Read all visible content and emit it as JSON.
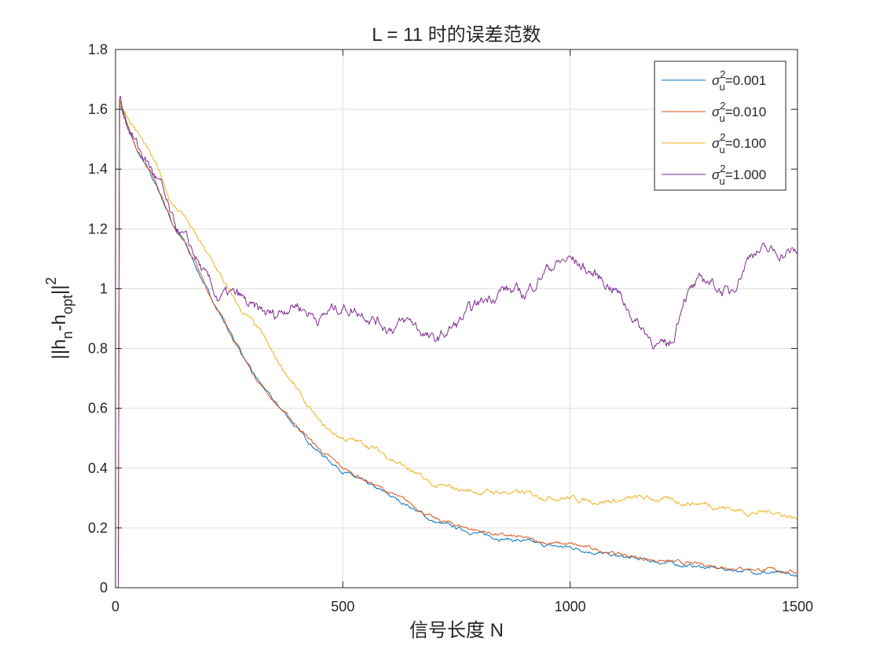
{
  "chart_data": {
    "type": "line",
    "title": "L = 11 时的误差范数",
    "xlabel": "信号长度 N",
    "ylabel": {
      "base": "||h",
      "sub1": "n",
      "mid": "-h",
      "sub2": "opt",
      "tail": "||",
      "sup": "2"
    },
    "xlim": [
      0,
      1500
    ],
    "ylim": [
      0,
      1.8
    ],
    "x_ticks": [
      0,
      500,
      1000,
      1500
    ],
    "x_tick_labels": [
      "0",
      "500",
      "1000",
      "1500"
    ],
    "y_ticks": [
      0,
      0.2,
      0.4,
      0.6,
      0.8,
      1.0,
      1.2,
      1.4,
      1.6,
      1.8
    ],
    "y_tick_labels": [
      "0",
      "0.2",
      "0.4",
      "0.6",
      "0.8",
      "1",
      "1.2",
      "1.4",
      "1.6",
      "1.8"
    ],
    "grid": true,
    "legend_position": "top-right",
    "series": [
      {
        "name": "σu²=0.001",
        "legend": {
          "sym": "σ",
          "sup": "2",
          "sub": "u",
          "rest": "=0.001"
        },
        "color": "#0072BD",
        "noise": 0.004,
        "points": [
          [
            0,
            0
          ],
          [
            6,
            0
          ],
          [
            9,
            1.62
          ],
          [
            25,
            1.55
          ],
          [
            50,
            1.45
          ],
          [
            75,
            1.39
          ],
          [
            100,
            1.31
          ],
          [
            125,
            1.22
          ],
          [
            150,
            1.16
          ],
          [
            175,
            1.08
          ],
          [
            200,
            1.0
          ],
          [
            225,
            0.93
          ],
          [
            250,
            0.86
          ],
          [
            275,
            0.79
          ],
          [
            300,
            0.72
          ],
          [
            325,
            0.67
          ],
          [
            350,
            0.62
          ],
          [
            375,
            0.58
          ],
          [
            400,
            0.53
          ],
          [
            425,
            0.49
          ],
          [
            450,
            0.45
          ],
          [
            475,
            0.42
          ],
          [
            500,
            0.39
          ],
          [
            550,
            0.35
          ],
          [
            600,
            0.31
          ],
          [
            650,
            0.27
          ],
          [
            700,
            0.22
          ],
          [
            750,
            0.2
          ],
          [
            800,
            0.18
          ],
          [
            850,
            0.165
          ],
          [
            900,
            0.155
          ],
          [
            950,
            0.14
          ],
          [
            1000,
            0.135
          ],
          [
            1050,
            0.12
          ],
          [
            1100,
            0.105
          ],
          [
            1150,
            0.095
          ],
          [
            1200,
            0.085
          ],
          [
            1250,
            0.075
          ],
          [
            1300,
            0.068
          ],
          [
            1350,
            0.06
          ],
          [
            1400,
            0.055
          ],
          [
            1450,
            0.048
          ],
          [
            1500,
            0.04
          ]
        ]
      },
      {
        "name": "σu²=0.010",
        "legend": {
          "sym": "σ",
          "sup": "2",
          "sub": "u",
          "rest": "=0.010"
        },
        "color": "#D95319",
        "noise": 0.004,
        "points": [
          [
            0,
            0
          ],
          [
            6,
            0
          ],
          [
            9,
            1.63
          ],
          [
            25,
            1.55
          ],
          [
            50,
            1.46
          ],
          [
            75,
            1.4
          ],
          [
            100,
            1.32
          ],
          [
            125,
            1.22
          ],
          [
            150,
            1.16
          ],
          [
            175,
            1.09
          ],
          [
            200,
            1.0
          ],
          [
            225,
            0.93
          ],
          [
            250,
            0.86
          ],
          [
            275,
            0.79
          ],
          [
            300,
            0.72
          ],
          [
            325,
            0.67
          ],
          [
            350,
            0.62
          ],
          [
            375,
            0.58
          ],
          [
            400,
            0.54
          ],
          [
            425,
            0.5
          ],
          [
            450,
            0.46
          ],
          [
            475,
            0.43
          ],
          [
            500,
            0.4
          ],
          [
            550,
            0.36
          ],
          [
            600,
            0.32
          ],
          [
            650,
            0.28
          ],
          [
            700,
            0.23
          ],
          [
            750,
            0.21
          ],
          [
            800,
            0.19
          ],
          [
            850,
            0.175
          ],
          [
            900,
            0.165
          ],
          [
            950,
            0.15
          ],
          [
            1000,
            0.145
          ],
          [
            1050,
            0.13
          ],
          [
            1100,
            0.115
          ],
          [
            1150,
            0.1
          ],
          [
            1200,
            0.09
          ],
          [
            1250,
            0.082
          ],
          [
            1300,
            0.076
          ],
          [
            1350,
            0.068
          ],
          [
            1400,
            0.063
          ],
          [
            1450,
            0.058
          ],
          [
            1500,
            0.052
          ]
        ]
      },
      {
        "name": "σu²=0.100",
        "legend": {
          "sym": "σ",
          "sup": "2",
          "sub": "u",
          "rest": "=0.100"
        },
        "color": "#EDB120",
        "noise": 0.006,
        "points": [
          [
            0,
            0
          ],
          [
            6,
            0
          ],
          [
            9,
            1.62
          ],
          [
            25,
            1.58
          ],
          [
            50,
            1.52
          ],
          [
            75,
            1.45
          ],
          [
            100,
            1.38
          ],
          [
            125,
            1.28
          ],
          [
            150,
            1.25
          ],
          [
            175,
            1.18
          ],
          [
            200,
            1.12
          ],
          [
            225,
            1.06
          ],
          [
            250,
            0.99
          ],
          [
            275,
            0.93
          ],
          [
            300,
            0.89
          ],
          [
            325,
            0.84
          ],
          [
            350,
            0.77
          ],
          [
            375,
            0.72
          ],
          [
            400,
            0.66
          ],
          [
            425,
            0.6
          ],
          [
            450,
            0.55
          ],
          [
            475,
            0.52
          ],
          [
            500,
            0.5
          ],
          [
            550,
            0.48
          ],
          [
            600,
            0.44
          ],
          [
            650,
            0.39
          ],
          [
            700,
            0.34
          ],
          [
            750,
            0.33
          ],
          [
            800,
            0.32
          ],
          [
            850,
            0.32
          ],
          [
            900,
            0.315
          ],
          [
            950,
            0.305
          ],
          [
            1000,
            0.3
          ],
          [
            1050,
            0.29
          ],
          [
            1100,
            0.29
          ],
          [
            1150,
            0.3
          ],
          [
            1200,
            0.295
          ],
          [
            1250,
            0.285
          ],
          [
            1300,
            0.28
          ],
          [
            1350,
            0.265
          ],
          [
            1400,
            0.25
          ],
          [
            1450,
            0.255
          ],
          [
            1500,
            0.23
          ]
        ]
      },
      {
        "name": "σu²=1.000",
        "legend": {
          "sym": "σ",
          "sup": "2",
          "sub": "u",
          "rest": "=1.000"
        },
        "color": "#7E2F8E",
        "noise": 0.014,
        "points": [
          [
            0,
            0
          ],
          [
            6,
            0
          ],
          [
            9,
            1.64
          ],
          [
            25,
            1.56
          ],
          [
            50,
            1.47
          ],
          [
            75,
            1.41
          ],
          [
            100,
            1.34
          ],
          [
            125,
            1.22
          ],
          [
            150,
            1.17
          ],
          [
            175,
            1.11
          ],
          [
            200,
            1.03
          ],
          [
            225,
            0.97
          ],
          [
            250,
            0.98
          ],
          [
            275,
            0.97
          ],
          [
            300,
            0.93
          ],
          [
            325,
            0.92
          ],
          [
            350,
            0.91
          ],
          [
            375,
            0.94
          ],
          [
            400,
            0.95
          ],
          [
            425,
            0.92
          ],
          [
            450,
            0.9
          ],
          [
            475,
            0.93
          ],
          [
            500,
            0.94
          ],
          [
            550,
            0.92
          ],
          [
            600,
            0.87
          ],
          [
            650,
            0.89
          ],
          [
            700,
            0.82
          ],
          [
            750,
            0.88
          ],
          [
            800,
            0.95
          ],
          [
            850,
            1.0
          ],
          [
            900,
            0.98
          ],
          [
            950,
            1.07
          ],
          [
            1000,
            1.1
          ],
          [
            1050,
            1.05
          ],
          [
            1100,
            1.0
          ],
          [
            1150,
            0.88
          ],
          [
            1200,
            0.8
          ],
          [
            1225,
            0.82
          ],
          [
            1250,
            0.98
          ],
          [
            1300,
            1.03
          ],
          [
            1350,
            0.98
          ],
          [
            1400,
            1.13
          ],
          [
            1450,
            1.12
          ],
          [
            1500,
            1.12
          ]
        ]
      }
    ]
  }
}
